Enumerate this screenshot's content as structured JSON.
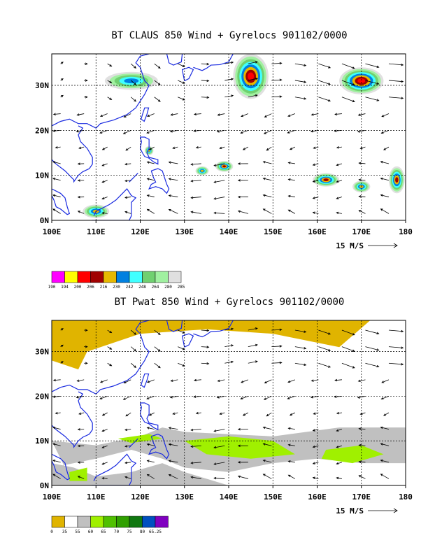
{
  "chart_data": [
    {
      "type": "heatmap",
      "title": "BT CLAUS 850 Wind + Gyrelocs 901102/0000",
      "x_ticks": [
        "100E",
        "110E",
        "120E",
        "130E",
        "140E",
        "150E",
        "160E",
        "170E",
        "180"
      ],
      "y_ticks": [
        "0N",
        "10N",
        "20N",
        "30N"
      ],
      "xlim": [
        100,
        180
      ],
      "ylim": [
        0,
        37
      ],
      "grid": true,
      "vector_reference": "15 M/S",
      "colorbar_labels": [
        "190",
        "194",
        "200",
        "206",
        "216",
        "230",
        "242",
        "248",
        "264",
        "280",
        "285"
      ],
      "colorbar_colors": [
        "#ff00ff",
        "#ffff00",
        "#ff0000",
        "#a00000",
        "#e6b800",
        "#0080e0",
        "#40ffff",
        "#70d070",
        "#a0f0a0",
        "#e0e0e0"
      ],
      "cloud_clusters": [
        {
          "lon": 145,
          "lat": 32,
          "rx": 4,
          "ry": 5,
          "level": 5
        },
        {
          "lon": 170,
          "lat": 31,
          "rx": 5,
          "ry": 3,
          "level": 5
        },
        {
          "lon": 139,
          "lat": 12,
          "rx": 2,
          "ry": 1.2,
          "level": 4
        },
        {
          "lon": 162,
          "lat": 9,
          "rx": 3,
          "ry": 1.5,
          "level": 4
        },
        {
          "lon": 170,
          "lat": 7.5,
          "rx": 2,
          "ry": 1.3,
          "level": 3
        },
        {
          "lon": 178,
          "lat": 9,
          "rx": 1.8,
          "ry": 3,
          "level": 4
        },
        {
          "lon": 118,
          "lat": 31,
          "rx": 6,
          "ry": 2,
          "level": 2
        },
        {
          "lon": 110,
          "lat": 2,
          "rx": 3,
          "ry": 1.5,
          "level": 3
        },
        {
          "lon": 134,
          "lat": 11,
          "rx": 1.5,
          "ry": 1,
          "level": 3
        },
        {
          "lon": 122,
          "lat": 15.5,
          "rx": 1,
          "ry": 1,
          "level": 3
        }
      ]
    },
    {
      "type": "heatmap",
      "title": "BT Pwat 850 Wind + Gyrelocs 901102/0000",
      "x_ticks": [
        "100E",
        "110E",
        "120E",
        "130E",
        "140E",
        "150E",
        "160E",
        "170E",
        "180"
      ],
      "y_ticks": [
        "0N",
        "10N",
        "20N",
        "30N"
      ],
      "xlim": [
        100,
        180
      ],
      "ylim": [
        0,
        37
      ],
      "grid": true,
      "vector_reference": "15 M/S",
      "colorbar_labels": [
        "0",
        "35",
        "55",
        "60",
        "65",
        "70",
        "75",
        "80",
        "65.25"
      ],
      "colorbar_colors": [
        "#e0b400",
        "#ffffff",
        "#c0c0c0",
        "#a0f000",
        "#50c000",
        "#30a000",
        "#107810",
        "#0050c0",
        "#8000c0"
      ]
    }
  ]
}
